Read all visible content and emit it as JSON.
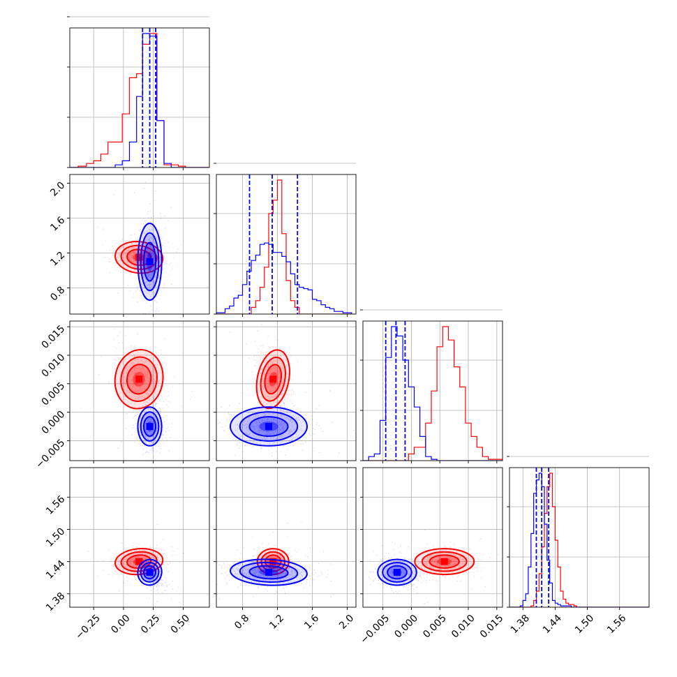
{
  "chart_data": {
    "type": "corner",
    "grid": true,
    "series": [
      {
        "color": "#ff0000",
        "means": [
          0.13,
          1.15,
          0.0058,
          1.44
        ],
        "sds": [
          0.1,
          0.09,
          0.0026,
          0.012
        ],
        "corr": [
          [
            0,
            1,
            -0.25
          ],
          [
            0,
            2,
            -0.35
          ],
          [
            1,
            2,
            -0.45
          ],
          [
            0,
            3,
            0.2
          ]
        ]
      },
      {
        "color": "#0000ff",
        "means": [
          0.22,
          1.1,
          -0.0025,
          1.42
        ],
        "sds": [
          0.05,
          0.22,
          0.0017,
          0.012
        ],
        "corr": [
          [
            0,
            3,
            -0.55
          ],
          [
            1,
            3,
            -0.1
          ]
        ]
      }
    ],
    "params": [
      {
        "range": [
          -0.45,
          0.72
        ],
        "ticks": [
          -0.25,
          0.0,
          0.25,
          0.5
        ],
        "tick_labels": [
          "−0.25",
          "0.00",
          "0.25",
          "0.50"
        ],
        "quantiles": [
          0.16,
          0.22,
          0.27
        ],
        "hist": {
          "edges": [
            -0.45,
            -0.38,
            -0.31,
            -0.25,
            -0.19,
            -0.13,
            -0.07,
            -0.01,
            0.05,
            0.11,
            0.16,
            0.22,
            0.28,
            0.34,
            0.4,
            0.46,
            0.52,
            0.58,
            0.72
          ],
          "red": [
            0.0,
            0.01,
            0.03,
            0.05,
            0.1,
            0.19,
            0.19,
            0.4,
            0.67,
            0.7,
            0.92,
            1.0,
            0.35,
            0.02,
            0.02,
            0.01,
            0.0,
            0.0
          ],
          "blue": [
            0.0,
            0.0,
            0.0,
            0.0,
            0.0,
            0.0,
            0.02,
            0.05,
            0.19,
            0.53,
            1.0,
            0.98,
            0.35,
            0.03,
            0.0,
            0.0,
            0.0,
            0.0
          ]
        }
      },
      {
        "range": [
          0.5,
          2.1
        ],
        "ticks": [
          0.8,
          1.2,
          1.6,
          2.0
        ],
        "tick_labels": [
          "0.8",
          "1.2",
          "1.6",
          "2.0"
        ],
        "quantiles": [
          0.88,
          1.14,
          1.43
        ],
        "hist": {
          "edges": [
            0.5,
            0.6,
            0.65,
            0.7,
            0.75,
            0.8,
            0.85,
            0.9,
            0.95,
            1.0,
            1.05,
            1.1,
            1.15,
            1.2,
            1.25,
            1.3,
            1.35,
            1.4,
            1.45,
            1.5,
            1.55,
            1.6,
            1.65,
            1.7,
            1.75,
            1.8,
            1.85,
            1.9,
            1.95,
            2.05
          ],
          "red": [
            0,
            0,
            0,
            0,
            0,
            0,
            0,
            0.05,
            0.1,
            0.2,
            0.35,
            0.75,
            0.85,
            1.0,
            0.6,
            0.25,
            0.1,
            0.05,
            0,
            0,
            0,
            0,
            0,
            0,
            0,
            0,
            0,
            0,
            0
          ],
          "blue": [
            0.01,
            0.04,
            0.06,
            0.12,
            0.14,
            0.22,
            0.32,
            0.4,
            0.44,
            0.52,
            0.53,
            0.52,
            0.46,
            0.46,
            0.43,
            0.39,
            0.3,
            0.22,
            0.2,
            0.19,
            0.18,
            0.11,
            0.1,
            0.07,
            0.05,
            0.04,
            0.02,
            0.02,
            0.01
          ]
        }
      },
      {
        "range": [
          -0.0085,
          0.016
        ],
        "ticks": [
          -0.005,
          0.0,
          0.005,
          0.01,
          0.015
        ],
        "tick_labels": [
          "−0.005",
          "0.000",
          "0.005",
          "0.010",
          "0.015"
        ],
        "quantiles": [
          -0.0045,
          -0.0027,
          -0.0011
        ],
        "hist": {
          "edges": [
            -0.0085,
            -0.0075,
            -0.0065,
            -0.0055,
            -0.0045,
            -0.0035,
            -0.0025,
            -0.0015,
            -0.0005,
            0.0005,
            0.0015,
            0.0025,
            0.0035,
            0.0045,
            0.0055,
            0.0065,
            0.0075,
            0.0085,
            0.0095,
            0.0105,
            0.0115,
            0.0125,
            0.0135,
            0.016
          ],
          "red": [
            0,
            0,
            0,
            0,
            0,
            0,
            0,
            0,
            0.05,
            0.1,
            0.1,
            0.28,
            0.52,
            0.85,
            1.0,
            0.9,
            0.7,
            0.55,
            0.28,
            0.18,
            0.1,
            0.03,
            0.01
          ],
          "blue": [
            0,
            0.03,
            0.05,
            0.3,
            0.77,
            1.0,
            0.93,
            0.75,
            0.55,
            0.4,
            0.18,
            0.03,
            0.01,
            0,
            0,
            0,
            0,
            0,
            0,
            0,
            0,
            0,
            0
          ]
        }
      },
      {
        "range": [
          1.355,
          1.615
        ],
        "ticks": [
          1.38,
          1.44,
          1.5,
          1.56
        ],
        "tick_labels": [
          "1.38",
          "1.44",
          "1.50",
          "1.56"
        ],
        "quantiles": [
          1.405,
          1.415,
          1.428
        ],
        "hist": {
          "edges": [
            1.355,
            1.36,
            1.365,
            1.37,
            1.375,
            1.38,
            1.385,
            1.39,
            1.395,
            1.4,
            1.405,
            1.41,
            1.415,
            1.42,
            1.425,
            1.43,
            1.435,
            1.44,
            1.445,
            1.45,
            1.455,
            1.46,
            1.465,
            1.47,
            1.475,
            1.48,
            1.485,
            1.49,
            1.495,
            1.5,
            1.505,
            1.51,
            1.515,
            1.52,
            1.525,
            1.53,
            1.535,
            1.54,
            1.545,
            1.55,
            1.555,
            1.56,
            1.565,
            1.57,
            1.575,
            1.58,
            1.585,
            1.59,
            1.595,
            1.6,
            1.605,
            1.615
          ],
          "red": [
            0,
            0,
            0,
            0,
            0,
            0,
            0,
            0,
            0.01,
            0.05,
            0.12,
            0.25,
            0.45,
            0.7,
            0.9,
            1.0,
            0.75,
            0.5,
            0.3,
            0.12,
            0.06,
            0.03,
            0.02,
            0.02,
            0.01,
            0,
            0,
            0,
            0,
            0,
            0,
            0,
            0,
            0,
            0,
            0,
            0,
            0,
            0,
            0,
            0,
            0,
            0,
            0,
            0,
            0,
            0,
            0,
            0,
            0,
            0
          ],
          "blue": [
            0,
            0,
            0,
            0,
            0.01,
            0.05,
            0.1,
            0.3,
            0.55,
            0.85,
            0.95,
            1.0,
            0.9,
            0.62,
            0.35,
            0.18,
            0.05,
            0.03,
            0.02,
            0.01,
            0.01,
            0.01,
            0.01,
            0,
            0,
            0,
            0,
            0,
            0,
            0,
            0,
            0,
            0,
            0,
            0,
            0,
            0,
            0,
            0,
            0,
            0,
            0,
            0,
            0,
            0,
            0,
            0,
            0,
            0,
            0,
            0
          ]
        }
      }
    ]
  }
}
